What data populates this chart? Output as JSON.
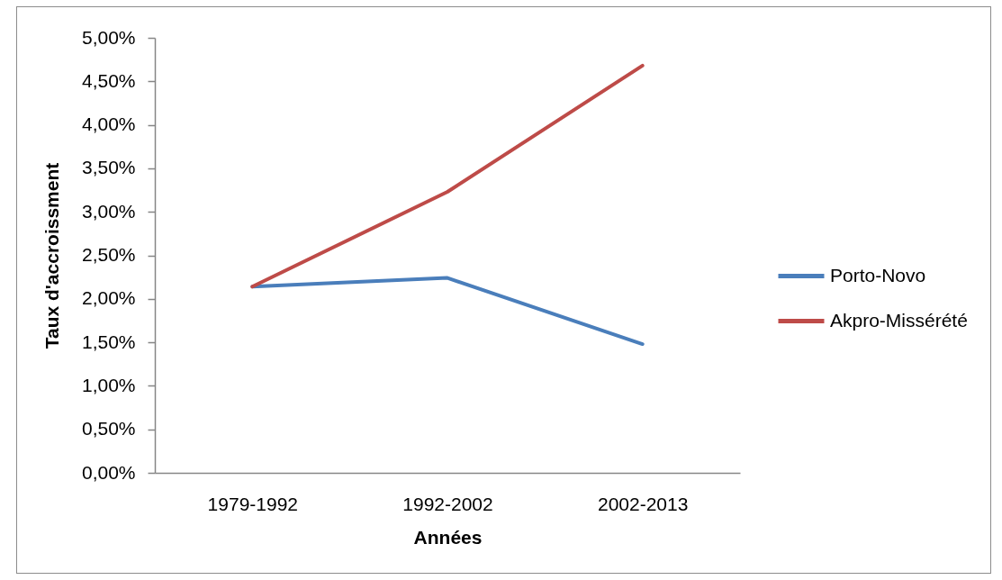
{
  "chart_data": {
    "type": "line",
    "categories": [
      "1979-1992",
      "1992-2002",
      "2002-2013"
    ],
    "series": [
      {
        "name": "Porto-Novo",
        "color": "#4a7ebb",
        "values": [
          2.14,
          2.24,
          1.48
        ]
      },
      {
        "name": "Akpro-Missérété",
        "color": "#be4b48",
        "values": [
          2.14,
          3.23,
          4.68
        ]
      }
    ],
    "xlabel": "Années",
    "ylabel": "Taux d'accroissment",
    "ylim": [
      0,
      5
    ],
    "yticks": [
      {
        "value": 0,
        "label": "0,00%"
      },
      {
        "value": 0.5,
        "label": "0,50%"
      },
      {
        "value": 1,
        "label": "1,00%"
      },
      {
        "value": 1.5,
        "label": "1,50%"
      },
      {
        "value": 2,
        "label": "2,00%"
      },
      {
        "value": 2.5,
        "label": "2,50%"
      },
      {
        "value": 3,
        "label": "3,00%"
      },
      {
        "value": 3.5,
        "label": "3,50%"
      },
      {
        "value": 4,
        "label": "4,00%"
      },
      {
        "value": 4.5,
        "label": "4,50%"
      },
      {
        "value": 5,
        "label": "5,00%"
      }
    ],
    "legend": "right"
  }
}
